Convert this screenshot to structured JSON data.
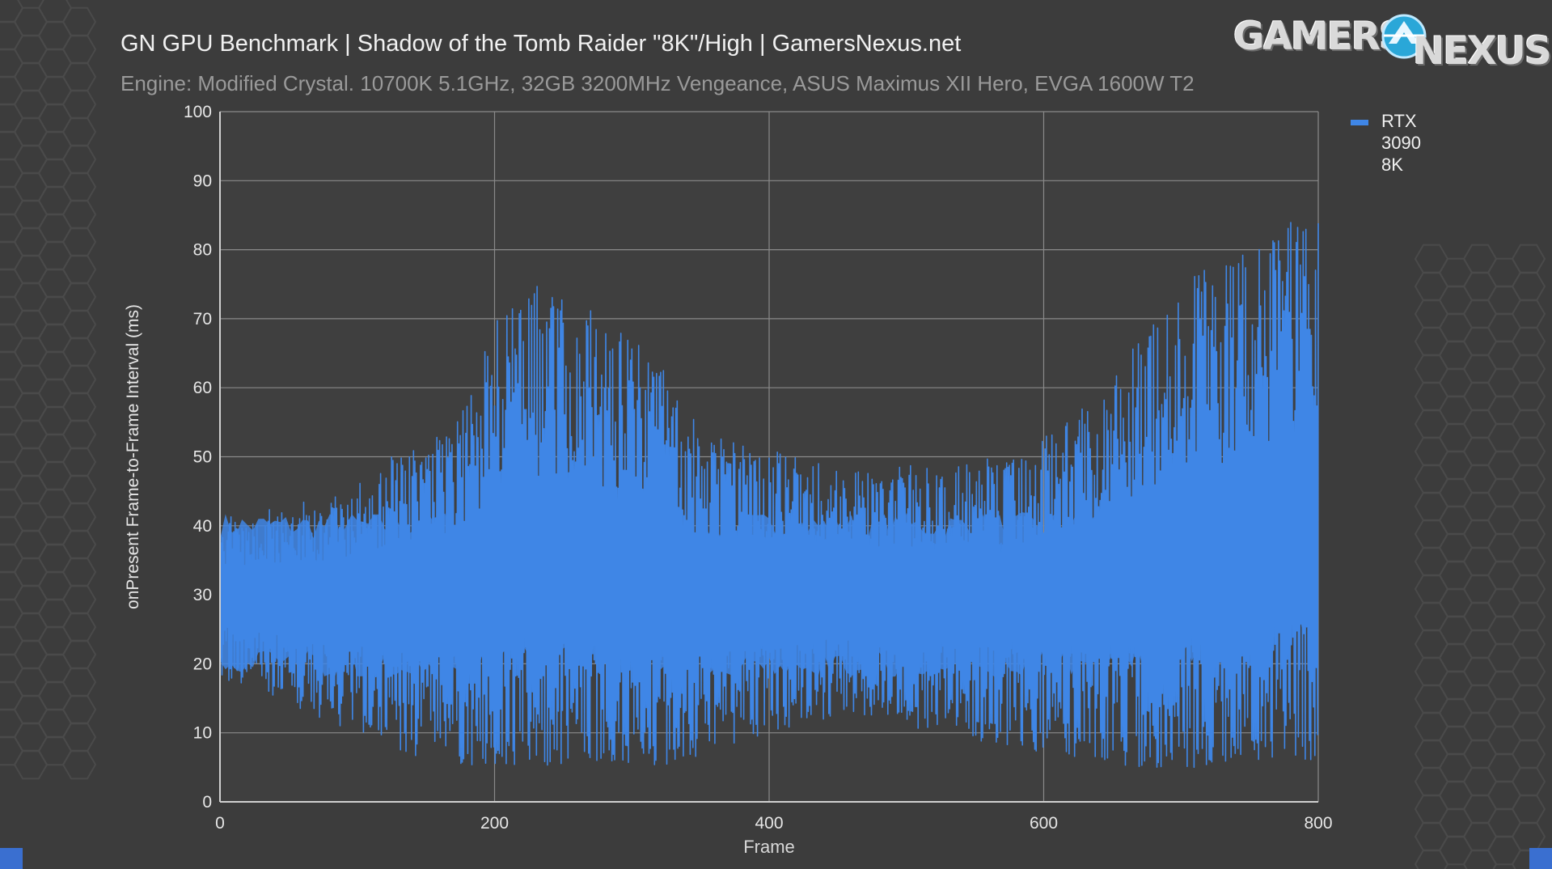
{
  "header": {
    "title": "GN GPU Benchmark | Shadow of the Tomb Raider \"8K\"/High | GamersNexus.net",
    "subtitle": "Engine: Modified Crystal. 10700K 5.1GHz, 32GB 3200MHz Vengeance, ASUS Maximus XII Hero, EVGA 1600W T2"
  },
  "logo": {
    "word1": "GAMERS",
    "word2": "NEXUS"
  },
  "colors": {
    "background": "#3c3c3c",
    "plot_background": "#3f3f3f",
    "gridline": "#8a8a8a",
    "series": "#3f86e6",
    "hex_pattern": "#4a4a4a"
  },
  "chart_data": {
    "type": "line",
    "title": "GN GPU Benchmark | Shadow of the Tomb Raider \"8K\"/High | GamersNexus.net",
    "subtitle": "Engine: Modified Crystal. 10700K 5.1GHz, 32GB 3200MHz Vengeance, ASUS Maximus XII Hero, EVGA 1600W T2",
    "xlabel": "Frame",
    "ylabel": "onPresent Frame-to-Frame Interval (ms)",
    "xlim": [
      0,
      800
    ],
    "ylim": [
      0,
      100
    ],
    "xticks": [
      "0",
      "200",
      "400",
      "600",
      "800"
    ],
    "yticks": [
      "0",
      "10",
      "20",
      "30",
      "40",
      "50",
      "60",
      "70",
      "80",
      "90",
      "100"
    ],
    "grid": true,
    "legend_position": "right",
    "series": [
      {
        "name": "RTX 3090 8K",
        "color": "#3f86e6",
        "style": "oscillating frame-time trace (alternating high/low frame intervals)",
        "center_line": [
          [
            0,
            30
          ],
          [
            50,
            30
          ],
          [
            100,
            30
          ],
          [
            150,
            30
          ],
          [
            200,
            31
          ],
          [
            250,
            33
          ],
          [
            300,
            31
          ],
          [
            350,
            30
          ],
          [
            400,
            30
          ],
          [
            450,
            30
          ],
          [
            500,
            30
          ],
          [
            550,
            30
          ],
          [
            600,
            30
          ],
          [
            650,
            31
          ],
          [
            700,
            32
          ],
          [
            750,
            34
          ],
          [
            800,
            38
          ]
        ],
        "upper_envelope": [
          [
            0,
            41
          ],
          [
            25,
            42
          ],
          [
            50,
            43
          ],
          [
            75,
            44
          ],
          [
            100,
            46
          ],
          [
            125,
            50
          ],
          [
            150,
            52
          ],
          [
            175,
            56
          ],
          [
            200,
            70
          ],
          [
            225,
            75
          ],
          [
            250,
            74
          ],
          [
            275,
            71
          ],
          [
            300,
            68
          ],
          [
            325,
            62
          ],
          [
            350,
            54
          ],
          [
            375,
            52
          ],
          [
            400,
            51
          ],
          [
            425,
            50
          ],
          [
            450,
            49
          ],
          [
            475,
            48
          ],
          [
            500,
            49
          ],
          [
            525,
            49
          ],
          [
            550,
            50
          ],
          [
            575,
            50
          ],
          [
            600,
            53
          ],
          [
            625,
            57
          ],
          [
            650,
            62
          ],
          [
            675,
            68
          ],
          [
            700,
            75
          ],
          [
            725,
            78
          ],
          [
            750,
            80
          ],
          [
            775,
            84
          ],
          [
            800,
            84
          ]
        ],
        "lower_envelope": [
          [
            0,
            18
          ],
          [
            25,
            16
          ],
          [
            50,
            14
          ],
          [
            75,
            12
          ],
          [
            100,
            10
          ],
          [
            125,
            8
          ],
          [
            150,
            6
          ],
          [
            175,
            5
          ],
          [
            200,
            5
          ],
          [
            225,
            5
          ],
          [
            250,
            5
          ],
          [
            275,
            5
          ],
          [
            300,
            5
          ],
          [
            325,
            5
          ],
          [
            350,
            6
          ],
          [
            375,
            8
          ],
          [
            400,
            10
          ],
          [
            425,
            11
          ],
          [
            450,
            12
          ],
          [
            475,
            12
          ],
          [
            500,
            11
          ],
          [
            525,
            10
          ],
          [
            550,
            9
          ],
          [
            575,
            8
          ],
          [
            600,
            7
          ],
          [
            625,
            6
          ],
          [
            650,
            5
          ],
          [
            675,
            5
          ],
          [
            700,
            5
          ],
          [
            725,
            5
          ],
          [
            750,
            6
          ],
          [
            775,
            6
          ],
          [
            800,
            6
          ]
        ]
      }
    ]
  }
}
